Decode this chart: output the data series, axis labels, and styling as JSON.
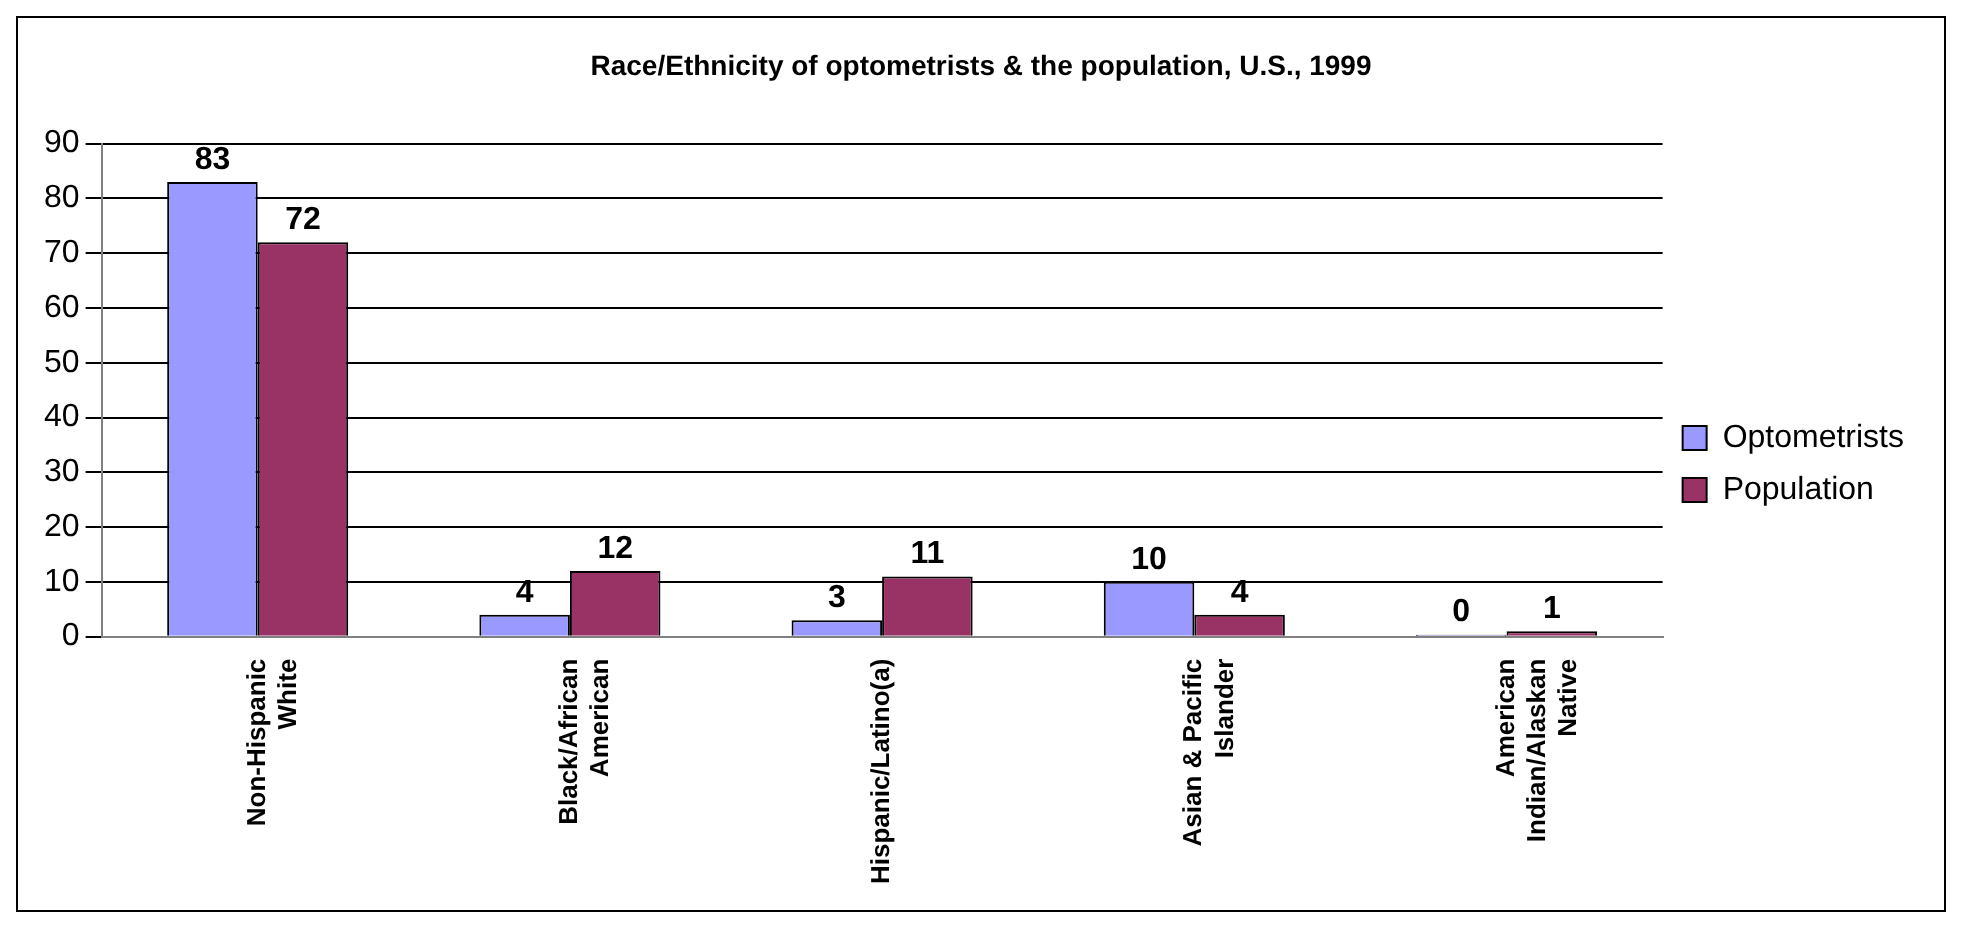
{
  "chart_data": {
    "type": "bar",
    "title": "Race/Ethnicity of optometrists & the population, U.S., 1999",
    "categories": [
      "Non-Hispanic White",
      "Black/African American",
      "Hispanic/Latino(a)",
      "Asian & Pacific Islander",
      "American Indian/Alaskan Native"
    ],
    "series": [
      {
        "name": "Optometrists",
        "color": "#9999ff",
        "values": [
          83,
          4,
          3,
          10,
          0
        ]
      },
      {
        "name": "Population",
        "color": "#993366",
        "values": [
          72,
          12,
          11,
          4,
          1
        ]
      }
    ],
    "ylim": [
      0,
      90
    ],
    "yticks": [
      0,
      10,
      20,
      30,
      40,
      50,
      60,
      70,
      80,
      90
    ],
    "grid": "y",
    "legend": "right",
    "data_labels": true
  }
}
